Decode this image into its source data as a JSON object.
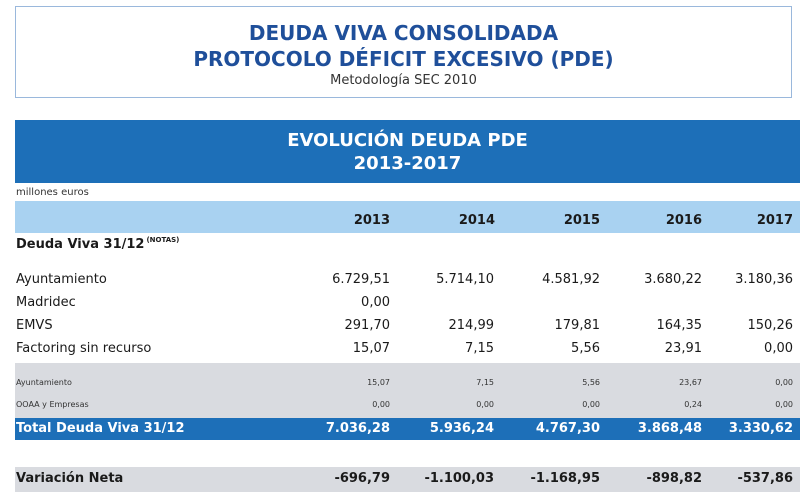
{
  "header": {
    "title_line1": "DEUDA VIVA CONSOLIDADA",
    "title_line2": "PROTOCOLO DÉFICIT EXCESIVO (PDE)",
    "subtitle": "Metodología SEC 2010"
  },
  "banner": {
    "line1": "EVOLUCIÓN DEUDA PDE",
    "line2": "2013-2017"
  },
  "units": "millones euros",
  "years": [
    "2013",
    "2014",
    "2015",
    "2016",
    "2017"
  ],
  "section": {
    "label": "Deuda Viva 31/12",
    "note": "(NOTAS)"
  },
  "rows": [
    {
      "label": "Ayuntamiento",
      "values": [
        "6.729,51",
        "5.714,10",
        "4.581,92",
        "3.680,22",
        "3.180,36"
      ]
    },
    {
      "label": "Madridec",
      "values": [
        "0,00",
        "",
        "",
        "",
        ""
      ]
    },
    {
      "label": "EMVS",
      "values": [
        "291,70",
        "214,99",
        "179,81",
        "164,35",
        "150,26"
      ]
    },
    {
      "label": "Factoring sin recurso",
      "values": [
        "15,07",
        "7,15",
        "5,56",
        "23,91",
        "0,00"
      ]
    }
  ],
  "detail_rows": [
    {
      "label": "Ayuntamiento",
      "values": [
        "15,07",
        "7,15",
        "5,56",
        "23,67",
        "0,00"
      ]
    },
    {
      "label": "OOAA y Empresas",
      "values": [
        "0,00",
        "0,00",
        "0,00",
        "0,24",
        "0,00"
      ]
    }
  ],
  "total": {
    "label": "Total Deuda Viva 31/12",
    "values": [
      "7.036,28",
      "5.936,24",
      "4.767,30",
      "3.868,48",
      "3.330,62"
    ]
  },
  "variation": {
    "label": "Variación Neta",
    "values": [
      "-696,79",
      "-1.100,03",
      "-1.168,95",
      "-898,82",
      "-537,86"
    ]
  },
  "colors": {
    "title_blue": "#1f4f9a",
    "banner_blue": "#1d6fb8",
    "light_blue": "#a9d2f1",
    "grey": "#d9dbe0"
  }
}
